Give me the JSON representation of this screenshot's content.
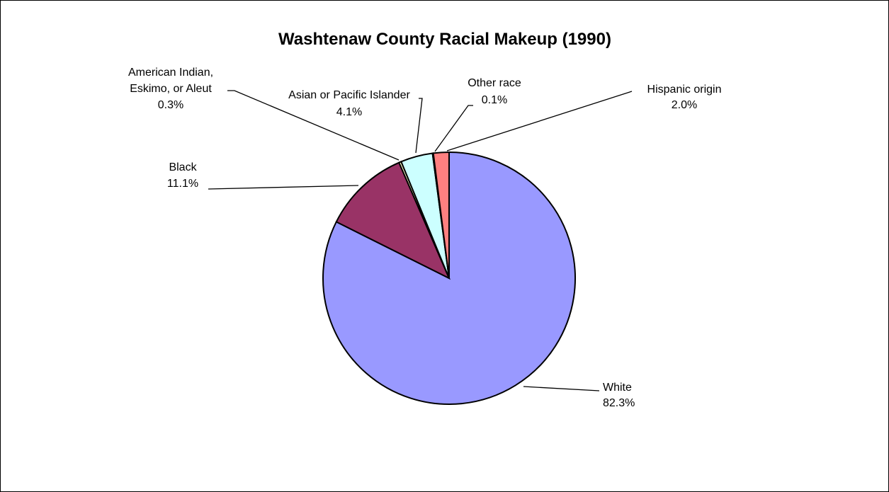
{
  "chart_data": {
    "type": "pie",
    "title": "Washtenaw County Racial Makeup (1990)",
    "start_angle_deg": 0,
    "direction": "clockwise",
    "slices": [
      {
        "name": "White",
        "value": 82.3,
        "label": "82.3%",
        "color": "#9999FF"
      },
      {
        "name": "Black",
        "value": 11.1,
        "label": "11.1%",
        "color": "#993366"
      },
      {
        "name": "American Indian, Eskimo, or Aleut",
        "name_lines": [
          "American Indian,",
          "Eskimo, or Aleut"
        ],
        "value": 0.3,
        "label": "0.3%",
        "color": "#FFFFCC"
      },
      {
        "name": "Asian or Pacific Islander",
        "value": 4.1,
        "label": "4.1%",
        "color": "#CCFFFF"
      },
      {
        "name": "Other race",
        "value": 0.1,
        "label": "0.1%",
        "color": "#660066"
      },
      {
        "name": "Hispanic origin",
        "value": 2.0,
        "label": "2.0%",
        "color": "#FF8080"
      }
    ]
  }
}
